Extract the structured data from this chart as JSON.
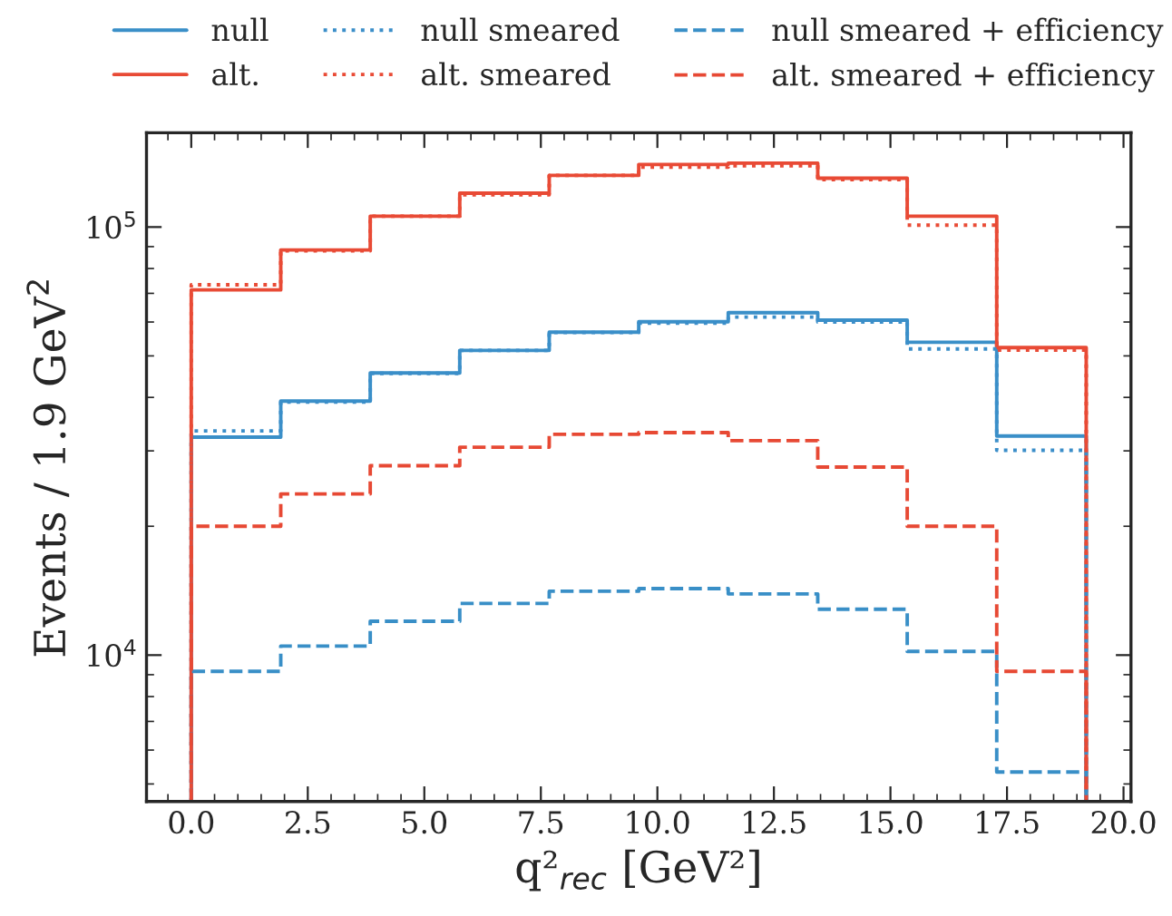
{
  "chart_data": {
    "type": "histogram",
    "xlabel": "q²$_{rec}$ [GeV²]",
    "ylabel": "Events / 1.9 GeV$^{2}$",
    "bins": [
      0,
      1.92,
      3.84,
      5.76,
      7.68,
      9.6,
      11.52,
      13.44,
      15.36,
      17.28,
      19.2
    ],
    "series": [
      {
        "name": "null",
        "color": "#3a8fc8",
        "line_style": "solid",
        "values": [
          32300,
          39200,
          45600,
          51500,
          56800,
          60100,
          63100,
          60600,
          53800,
          32500
        ]
      },
      {
        "name": "alt.",
        "color": "#e84a35",
        "line_style": "solid",
        "values": [
          71300,
          88400,
          106000,
          120000,
          132000,
          140000,
          141000,
          130000,
          106000,
          52300
        ]
      },
      {
        "name": "null smeared",
        "color": "#3b8ec9",
        "line_style": "dotted",
        "values": [
          33400,
          39000,
          45500,
          51500,
          56700,
          59600,
          61600,
          60000,
          51900,
          30100
        ]
      },
      {
        "name": "alt. smeared",
        "color": "#e94b36",
        "line_style": "dotted",
        "values": [
          73300,
          88000,
          106000,
          119000,
          132000,
          138000,
          139000,
          129000,
          101000,
          51600
        ]
      },
      {
        "name": "null smeared + efficiency",
        "color": "#398fc7",
        "line_style": "dashed",
        "values": [
          9160,
          10500,
          12000,
          13200,
          14100,
          14300,
          13900,
          12800,
          10200,
          5330
        ]
      },
      {
        "name": "alt. smeared + efficiency",
        "color": "#e74934",
        "line_style": "dashed",
        "values": [
          20000,
          23800,
          27700,
          30600,
          32800,
          33100,
          31700,
          27500,
          20000,
          9160
        ]
      }
    ],
    "log": "y",
    "xlim": [
      -0.96,
      20.16
    ],
    "ylim": [
      4550,
      166000
    ],
    "xticks": [
      {
        "value": 0,
        "label": "0.0"
      },
      {
        "value": 2.5,
        "label": "2.5"
      },
      {
        "value": 5,
        "label": "5.0"
      },
      {
        "value": 7.5,
        "label": "7.5"
      },
      {
        "value": 10,
        "label": "10.0"
      },
      {
        "value": 12.5,
        "label": "12.5"
      },
      {
        "value": 15,
        "label": "15.0"
      },
      {
        "value": 17.5,
        "label": "17.5"
      },
      {
        "value": 20,
        "label": "20.0"
      }
    ],
    "yticks": [
      {
        "value": 10000,
        "label": "10$^{4}$"
      },
      {
        "value": 100000,
        "label": "10$^{5}$"
      }
    ],
    "grid": false,
    "legend": "top"
  }
}
